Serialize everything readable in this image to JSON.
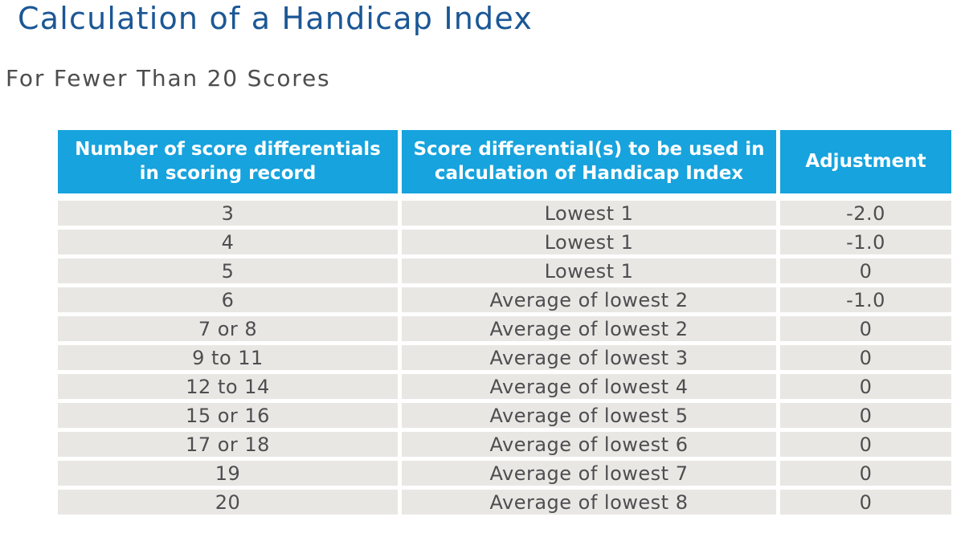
{
  "title": "Calculation of a Handicap Index",
  "subtitle": "For Fewer Than 20 Scores",
  "colors": {
    "header_bg": "#17a3dd",
    "row_bg": "#e8e7e4",
    "title": "#1b5795",
    "subtitle": "#4d4d4d",
    "body_text": "#4e4e50"
  },
  "table": {
    "columns": [
      "Number of score differentials\nin scoring record",
      "Score differential(s) to be used in\ncalculation of Handicap Index",
      "Adjustment"
    ],
    "rows": [
      {
        "count": "3",
        "used": "Lowest 1",
        "adjustment": "-2.0"
      },
      {
        "count": "4",
        "used": "Lowest 1",
        "adjustment": "-1.0"
      },
      {
        "count": "5",
        "used": "Lowest 1",
        "adjustment": "0"
      },
      {
        "count": "6",
        "used": "Average of lowest 2",
        "adjustment": "-1.0"
      },
      {
        "count": "7 or 8",
        "used": "Average of lowest 2",
        "adjustment": "0"
      },
      {
        "count": "9 to 11",
        "used": "Average of lowest 3",
        "adjustment": "0"
      },
      {
        "count": "12 to 14",
        "used": "Average of lowest 4",
        "adjustment": "0"
      },
      {
        "count": "15 or 16",
        "used": "Average of lowest 5",
        "adjustment": "0"
      },
      {
        "count": "17 or 18",
        "used": "Average of lowest 6",
        "adjustment": "0"
      },
      {
        "count": "19",
        "used": "Average of lowest 7",
        "adjustment": "0"
      },
      {
        "count": "20",
        "used": "Average of lowest 8",
        "adjustment": "0"
      }
    ]
  }
}
